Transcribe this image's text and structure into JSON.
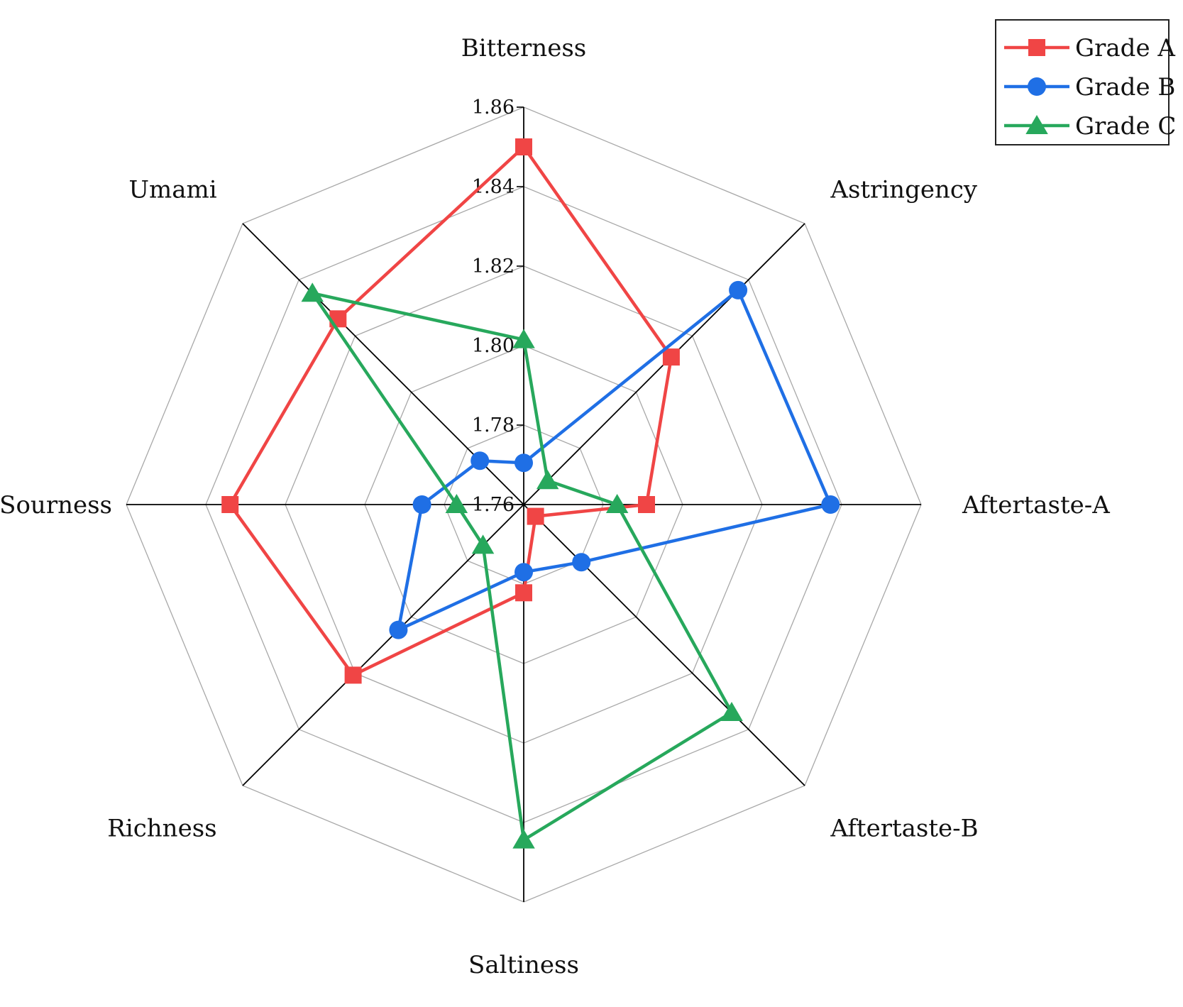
{
  "chart_data": {
    "type": "radar",
    "title": "",
    "axes": [
      "Bitterness",
      "Astringency",
      "Aftertaste-A",
      "Aftertaste-B",
      "Saltiness",
      "Richness",
      "Sourness",
      "Umami"
    ],
    "range": [
      1.76,
      1.86
    ],
    "ticks": [
      "1.76",
      "1.78",
      "1.80",
      "1.82",
      "1.84",
      "1.86"
    ],
    "tick_values": [
      1.76,
      1.78,
      1.8,
      1.82,
      1.84,
      1.86
    ],
    "grid": true,
    "legend_position": "top-right",
    "series": [
      {
        "name": "Grade A",
        "color": "#f04545",
        "marker": "square",
        "values": [
          1.85,
          1.8125,
          1.7909,
          1.7642,
          1.7822,
          1.8207,
          1.8339,
          1.8261
        ]
      },
      {
        "name": "Grade B",
        "color": "#1f6fe5",
        "marker": "circle",
        "values": [
          1.7705,
          1.8363,
          1.8372,
          1.7805,
          1.777,
          1.8046,
          1.7856,
          1.7756
        ]
      },
      {
        "name": "Grade C",
        "color": "#27a85c",
        "marker": "triangle",
        "values": [
          1.8015,
          1.7685,
          1.7835,
          1.834,
          1.8444,
          1.7745,
          1.7769,
          1.8352
        ]
      }
    ]
  }
}
